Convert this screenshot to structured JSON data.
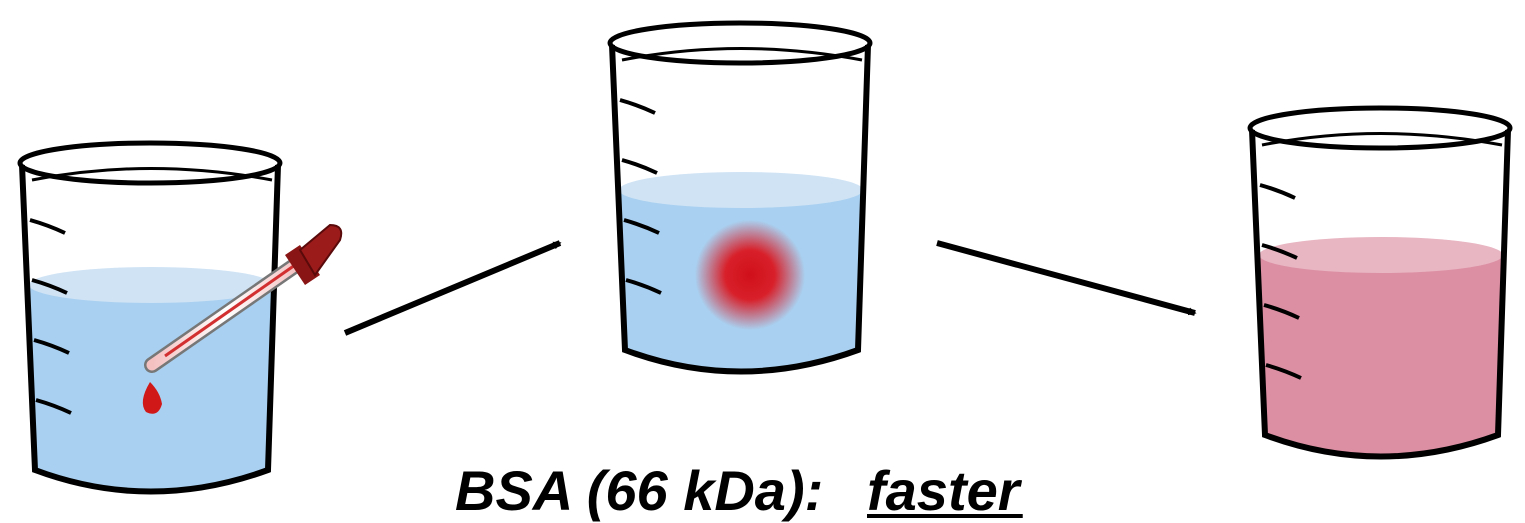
{
  "caption": {
    "label": "BSA (66 kDa):",
    "result": "faster"
  }
}
